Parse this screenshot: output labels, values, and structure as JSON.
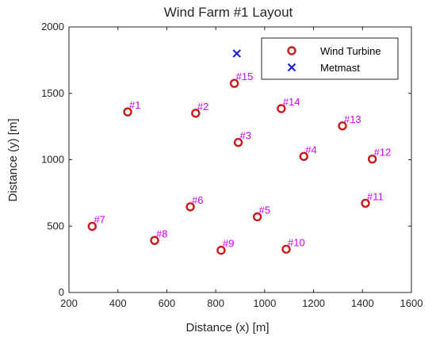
{
  "chart_data": {
    "type": "scatter",
    "title": "Wind Farm #1 Layout",
    "xlabel": "Distance (x) [m]",
    "ylabel": "Distance (y) [m]",
    "xlim": [
      200,
      1600
    ],
    "ylim": [
      0,
      2000
    ],
    "xticks": [
      200,
      400,
      600,
      800,
      1000,
      1200,
      1400,
      1600
    ],
    "yticks": [
      0,
      500,
      1000,
      1500,
      2000
    ],
    "grid": false,
    "legend": {
      "placement": "top-right",
      "entries": [
        "Wind Turbine",
        "Metmast"
      ]
    },
    "series": [
      {
        "name": "Wind Turbine",
        "marker": "circle",
        "color": "#c81a1a",
        "points": [
          {
            "x": 440,
            "y": 1360,
            "label": "#1"
          },
          {
            "x": 718,
            "y": 1350,
            "label": "#2"
          },
          {
            "x": 892,
            "y": 1130,
            "label": "#3"
          },
          {
            "x": 1160,
            "y": 1025,
            "label": "#4"
          },
          {
            "x": 970,
            "y": 570,
            "label": "#5"
          },
          {
            "x": 696,
            "y": 645,
            "label": "#6"
          },
          {
            "x": 295,
            "y": 498,
            "label": "#7"
          },
          {
            "x": 550,
            "y": 392,
            "label": "#8"
          },
          {
            "x": 822,
            "y": 318,
            "label": "#9"
          },
          {
            "x": 1088,
            "y": 326,
            "label": "#10"
          },
          {
            "x": 1412,
            "y": 672,
            "label": "#11"
          },
          {
            "x": 1440,
            "y": 1005,
            "label": "#12"
          },
          {
            "x": 1318,
            "y": 1255,
            "label": "#13"
          },
          {
            "x": 1068,
            "y": 1385,
            "label": "#14"
          },
          {
            "x": 876,
            "y": 1575,
            "label": "#15"
          }
        ]
      },
      {
        "name": "Metmast",
        "marker": "x",
        "color": "#1f22d4",
        "points": [
          {
            "x": 886,
            "y": 1800
          }
        ]
      }
    ]
  },
  "colors": {
    "turbine_marker": "#c81a1a",
    "turbine_label": "#d100ff",
    "metmast_marker": "#1f22d4",
    "axis": "#262626"
  }
}
